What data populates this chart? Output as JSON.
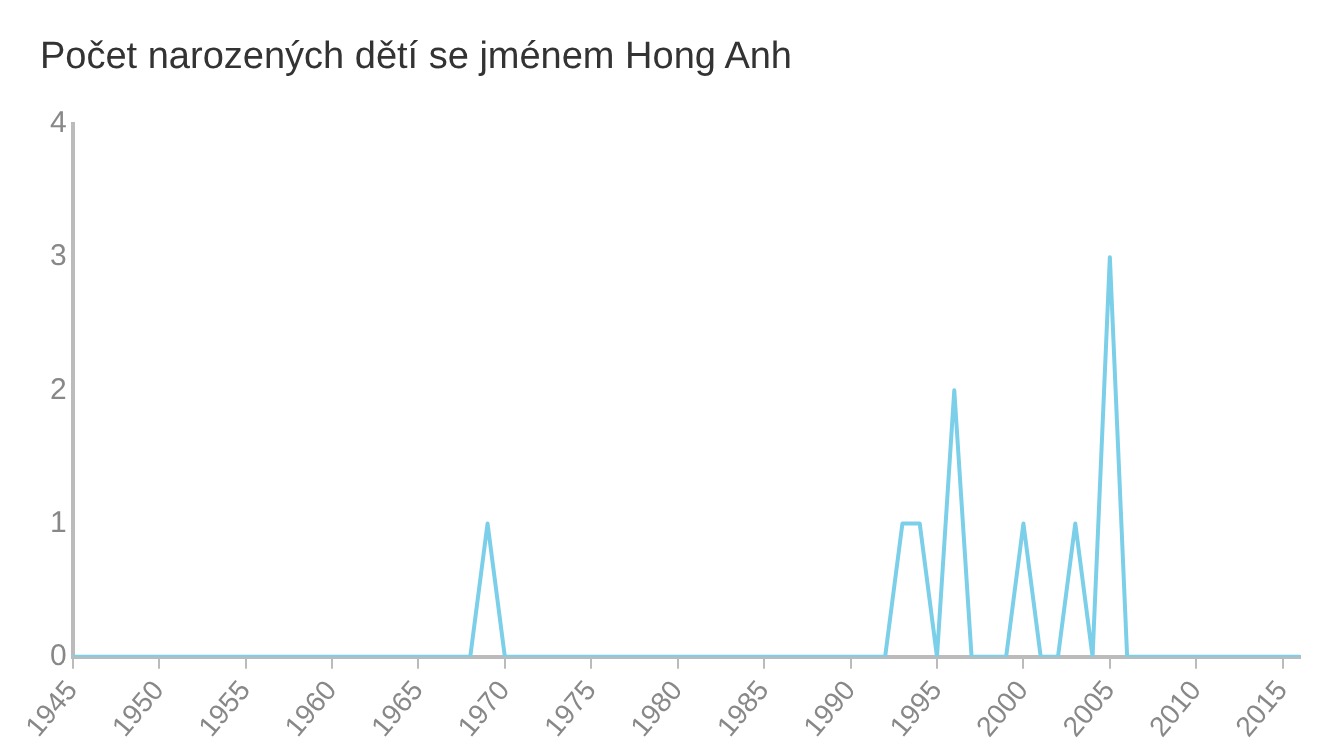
{
  "chart_data": {
    "type": "line",
    "title": "Počet narozených dětí se jménem Hong Anh",
    "x": [
      1945,
      1946,
      1947,
      1948,
      1949,
      1950,
      1951,
      1952,
      1953,
      1954,
      1955,
      1956,
      1957,
      1958,
      1959,
      1960,
      1961,
      1962,
      1963,
      1964,
      1965,
      1966,
      1967,
      1968,
      1969,
      1970,
      1971,
      1972,
      1973,
      1974,
      1975,
      1976,
      1977,
      1978,
      1979,
      1980,
      1981,
      1982,
      1983,
      1984,
      1985,
      1986,
      1987,
      1988,
      1989,
      1990,
      1991,
      1992,
      1993,
      1994,
      1995,
      1996,
      1997,
      1998,
      1999,
      2000,
      2001,
      2002,
      2003,
      2004,
      2005,
      2006,
      2007,
      2008,
      2009,
      2010,
      2011,
      2012,
      2013,
      2014,
      2015,
      2016
    ],
    "series": [
      {
        "color": "#7ccfe8",
        "values": [
          0,
          0,
          0,
          0,
          0,
          0,
          0,
          0,
          0,
          0,
          0,
          0,
          0,
          0,
          0,
          0,
          0,
          0,
          0,
          0,
          0,
          0,
          0,
          0,
          1,
          0,
          0,
          0,
          0,
          0,
          0,
          0,
          0,
          0,
          0,
          0,
          0,
          0,
          0,
          0,
          0,
          0,
          0,
          0,
          0,
          0,
          0,
          0,
          1,
          1,
          0,
          2,
          0,
          0,
          0,
          1,
          0,
          0,
          1,
          0,
          3,
          0,
          0,
          0,
          0,
          0,
          0,
          0,
          0,
          0,
          0,
          0
        ]
      }
    ],
    "xlim": [
      1945,
      2016
    ],
    "xticks": [
      1945,
      1950,
      1955,
      1960,
      1965,
      1970,
      1975,
      1980,
      1985,
      1990,
      1995,
      2000,
      2005,
      2010,
      2015
    ],
    "ylim": [
      0,
      4
    ],
    "yticks": [
      0,
      1,
      2,
      3,
      4
    ],
    "grid": false,
    "legend": false,
    "marker": "none",
    "line_style": "solid"
  }
}
